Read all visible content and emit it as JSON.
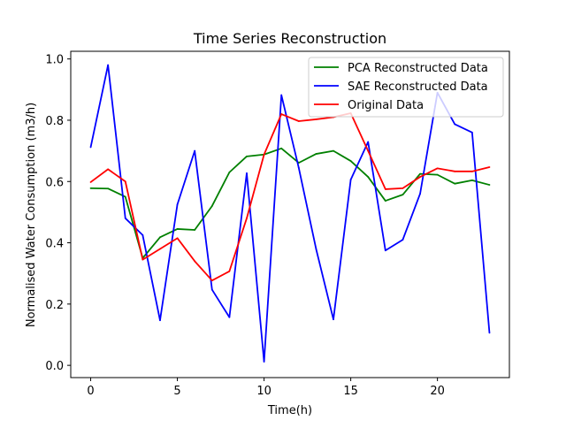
{
  "chart_data": {
    "type": "line",
    "title": "Time Series Reconstruction",
    "xlabel": "Time(h)",
    "ylabel": "Normalised Water Consumption (m3/h)",
    "xlim": [
      -1.15,
      24.15
    ],
    "ylim": [
      -0.04,
      1.025
    ],
    "x_ticks": [
      0,
      5,
      10,
      15,
      20
    ],
    "y_ticks": [
      0.0,
      0.2,
      0.4,
      0.6,
      0.8,
      1.0
    ],
    "x_tick_labels": [
      "0",
      "5",
      "10",
      "15",
      "20"
    ],
    "y_tick_labels": [
      "0.0",
      "0.2",
      "0.4",
      "0.6",
      "0.8",
      "1.0"
    ],
    "grid": false,
    "legend_position": "top-right",
    "x": [
      0,
      1,
      2,
      3,
      4,
      5,
      6,
      7,
      8,
      9,
      10,
      11,
      12,
      13,
      14,
      15,
      16,
      17,
      18,
      19,
      20,
      21,
      22,
      23
    ],
    "series": [
      {
        "name": "PCA Reconstructed Data",
        "color": "#008000",
        "values": [
          0.578,
          0.577,
          0.55,
          0.35,
          0.418,
          0.445,
          0.442,
          0.52,
          0.63,
          0.682,
          0.688,
          0.708,
          0.661,
          0.69,
          0.7,
          0.667,
          0.615,
          0.537,
          0.557,
          0.625,
          0.622,
          0.593,
          0.604,
          0.589
        ]
      },
      {
        "name": "SAE Reconstructed Data",
        "color": "#0000ff",
        "values": [
          0.712,
          0.98,
          0.48,
          0.425,
          0.147,
          0.525,
          0.7,
          0.247,
          0.157,
          0.627,
          0.012,
          0.882,
          0.645,
          0.38,
          0.15,
          0.606,
          0.729,
          0.375,
          0.41,
          0.56,
          0.89,
          0.787,
          0.76,
          0.106
        ]
      },
      {
        "name": "Original Data",
        "color": "#ff0000",
        "values": [
          0.598,
          0.64,
          0.6,
          0.345,
          0.38,
          0.415,
          0.34,
          0.277,
          0.307,
          0.48,
          0.688,
          0.82,
          0.797,
          0.803,
          0.81,
          0.823,
          0.7,
          0.575,
          0.578,
          0.615,
          0.643,
          0.633,
          0.633,
          0.647
        ]
      }
    ]
  }
}
